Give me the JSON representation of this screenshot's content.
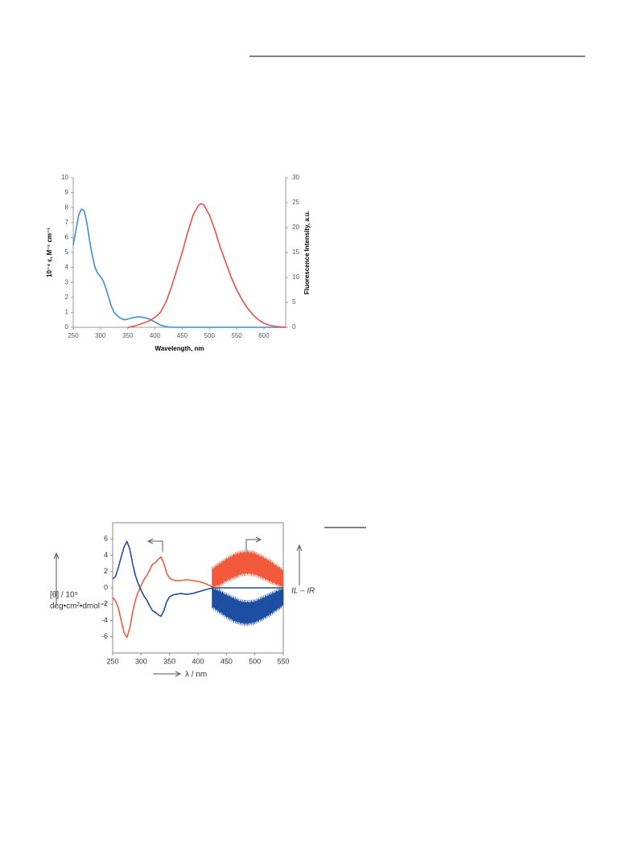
{
  "chart_data": [
    {
      "type": "line",
      "xlabel": "Wavelength, nm",
      "ylabel": "10⁻⁴ ε, M⁻¹ cm⁻¹",
      "y2label": "Fluorescence Intensity, a.u.",
      "xlim": [
        250,
        640
      ],
      "xticks": [
        250,
        300,
        350,
        400,
        450,
        500,
        550,
        600
      ],
      "ylim": [
        0,
        10
      ],
      "yticks": [
        0,
        1,
        2,
        3,
        4,
        5,
        6,
        7,
        8,
        9,
        10
      ],
      "y2lim": [
        0,
        30
      ],
      "y2ticks": [
        0,
        5,
        10,
        15,
        20,
        25,
        30
      ],
      "series": [
        {
          "color": "#3a8fd6",
          "x": [
            250,
            255,
            260,
            265,
            270,
            275,
            280,
            285,
            290,
            295,
            300,
            305,
            310,
            315,
            320,
            325,
            330,
            335,
            340,
            345,
            350,
            360,
            370,
            380,
            390,
            400,
            410,
            420,
            430,
            450,
            500,
            550,
            600,
            640
          ],
          "values": [
            5.5,
            6.5,
            7.5,
            7.9,
            7.8,
            7.0,
            5.8,
            4.8,
            4.0,
            3.6,
            3.4,
            3.1,
            2.6,
            2.0,
            1.4,
            1.0,
            0.8,
            0.65,
            0.55,
            0.5,
            0.55,
            0.65,
            0.7,
            0.65,
            0.55,
            0.35,
            0.15,
            0.05,
            0,
            0,
            0,
            0,
            0,
            0
          ]
        },
        {
          "color": "#e8504a",
          "axis": "y2",
          "x": [
            350,
            360,
            370,
            380,
            390,
            400,
            410,
            420,
            430,
            440,
            450,
            460,
            470,
            480,
            485,
            490,
            500,
            510,
            520,
            530,
            540,
            550,
            560,
            570,
            580,
            590,
            600,
            610,
            620,
            630,
            640
          ],
          "values": [
            0,
            0.2,
            0.5,
            0.9,
            1.3,
            2,
            3,
            5,
            8,
            11.5,
            15,
            19,
            22.5,
            24.5,
            24.8,
            24.5,
            22.5,
            19.5,
            16,
            13,
            10,
            7.5,
            5.5,
            3.8,
            2.5,
            1.5,
            0.8,
            0.4,
            0.2,
            0.1,
            0
          ]
        }
      ]
    },
    {
      "type": "line",
      "xlabel": "λ / nm",
      "ylabel": [
        "[θ] / 10⁵",
        "deg•cm²•dmol⁻¹"
      ],
      "y2label": "IL – IR",
      "xlim": [
        250,
        550
      ],
      "xticks": [
        250,
        300,
        350,
        400,
        450,
        500,
        550
      ],
      "ylim": [
        -8,
        8
      ],
      "yticks": [
        -6,
        -4,
        -2,
        0,
        2,
        4,
        6
      ],
      "series": [
        {
          "color": "#f25a3c",
          "x": [
            250,
            255,
            260,
            265,
            270,
            275,
            280,
            285,
            290,
            295,
            300,
            305,
            310,
            315,
            320,
            325,
            330,
            335,
            340,
            345,
            350,
            355,
            360,
            370,
            380,
            390,
            400,
            410,
            420,
            425,
            430
          ],
          "values": [
            -1.2,
            -1.6,
            -2.5,
            -4,
            -5.5,
            -6.1,
            -5,
            -3,
            -1.5,
            -0.5,
            0.3,
            1,
            1.5,
            2.2,
            2.9,
            3.1,
            3.5,
            3.8,
            3,
            1.8,
            1.2,
            1,
            0.9,
            0.9,
            1,
            0.9,
            0.8,
            0.6,
            0.3,
            0.1,
            0
          ]
        },
        {
          "color": "#1f4fa3",
          "x": [
            250,
            255,
            260,
            265,
            270,
            275,
            280,
            285,
            290,
            295,
            300,
            305,
            310,
            315,
            320,
            325,
            330,
            335,
            340,
            345,
            350,
            355,
            360,
            370,
            380,
            390,
            400,
            410,
            420,
            430,
            480,
            550
          ],
          "values": [
            1.1,
            1.4,
            2.5,
            3.8,
            5,
            5.7,
            4.8,
            3,
            1.5,
            0.5,
            -0.3,
            -1,
            -1.5,
            -2.2,
            -2.8,
            -3,
            -3.3,
            -3.5,
            -2.8,
            -1.7,
            -1.1,
            -0.9,
            -0.8,
            -0.7,
            -0.8,
            -0.7,
            -0.5,
            -0.3,
            -0.1,
            0,
            0,
            0
          ]
        },
        {
          "color": "#f25a3c",
          "x": [
            425,
            437.5,
            450,
            462.5,
            475,
            487.5,
            500,
            512.5,
            525,
            537.5,
            550
          ],
          "low": [
            0.2,
            0.5,
            1.0,
            1.4,
            1.8,
            1.9,
            1.8,
            1.4,
            1.0,
            0.6,
            0.2
          ],
          "high": [
            2.2,
            2.8,
            3.4,
            3.9,
            4.2,
            4.3,
            4.1,
            3.7,
            3.2,
            2.6,
            2.0
          ]
        },
        {
          "color": "#1f4fa3",
          "x": [
            425,
            437.5,
            450,
            462.5,
            475,
            487.5,
            500,
            512.5,
            525,
            537.5,
            550
          ],
          "low": [
            -2.2,
            -2.8,
            -3.4,
            -3.9,
            -4.2,
            -4.3,
            -4.1,
            -3.7,
            -3.2,
            -2.6,
            -2.0
          ],
          "high": [
            -0.2,
            -0.5,
            -1.0,
            -1.4,
            -1.8,
            -1.9,
            -1.8,
            -1.4,
            -1.0,
            -0.6,
            -0.2
          ]
        }
      ]
    }
  ]
}
